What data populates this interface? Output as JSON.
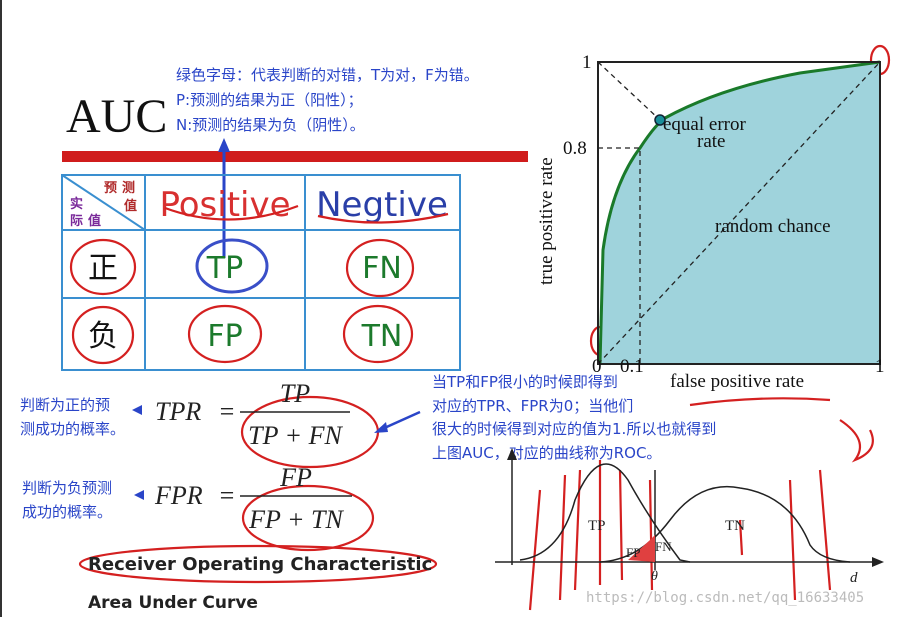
{
  "annotations": {
    "top": [
      "绿色字母：代表判断的对错，T为对，F为错。",
      "P:预测的结果为正（阳性）；",
      "N:预测的结果为负（阴性）。"
    ],
    "tpr_note": [
      "判断为正的预",
      "测成功的概率。"
    ],
    "fpr_note": [
      "判断为负预测",
      "成功的概率。"
    ],
    "roc_note": [
      "当TP和FP很小的时候即得到",
      "对应的TPR、FPR为0；当他们",
      "很大的时候得到对应的值为1.所以也就得到",
      "上图AUC，对应的曲线称为ROC。"
    ]
  },
  "slide": {
    "title": "AUC",
    "table": {
      "corner_predicted": [
        "预",
        "测",
        "值"
      ],
      "corner_actual": [
        "实",
        "际",
        "值"
      ],
      "header": [
        "Positive",
        "Negtive"
      ],
      "rows": [
        [
          "正",
          "TP",
          "FN"
        ],
        [
          "负",
          "FP",
          "TN"
        ]
      ]
    },
    "formulas": {
      "tpr": {
        "lhs": "TPR",
        "eq": "=",
        "num": "TP",
        "den": "TP + FN"
      },
      "fpr": {
        "lhs": "FPR",
        "eq": "=",
        "num": "FP",
        "den": "FP + TN"
      }
    },
    "captions": [
      "Receiver Operating Characteristic",
      "Area Under Curve"
    ]
  },
  "roc": {
    "y_label": "true positive rate",
    "x_label": "false positive rate",
    "y_ticks": [
      1,
      0.8
    ],
    "x_ticks": [
      0,
      0.1,
      1
    ],
    "equal_error": [
      "equal error",
      "rate"
    ],
    "random": "random chance"
  },
  "distribution": {
    "labels": [
      "TP",
      "TN",
      "FP",
      "FN"
    ],
    "threshold": "θ",
    "axis": "d"
  },
  "watermark": "https://blog.csdn.net/qq_16633405"
}
